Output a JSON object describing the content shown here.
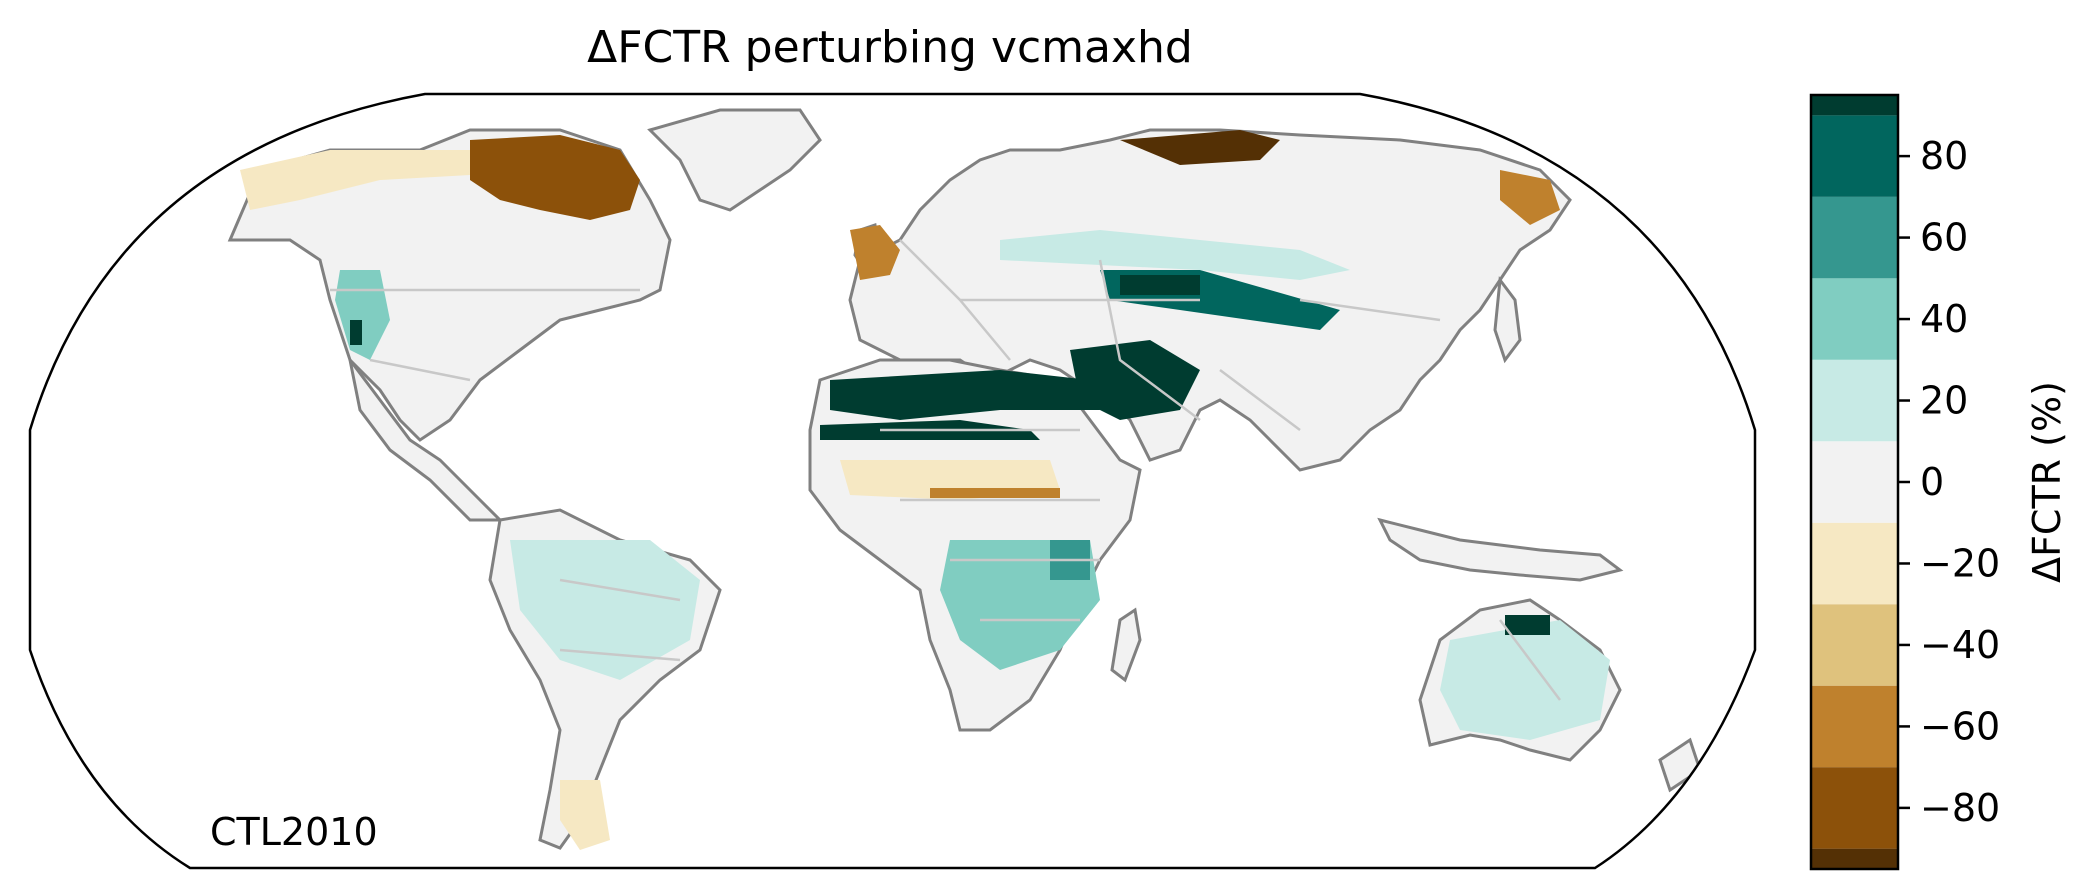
{
  "figure": {
    "title": "ΔFCTR perturbing vcmaxhd",
    "corner_label": "CTL2010"
  },
  "colorbar": {
    "label": "ΔFCTR (%)",
    "boundaries": [
      -90,
      -70,
      -50,
      -30,
      -10,
      10,
      30,
      50,
      70,
      90
    ],
    "colors": [
      "#543005",
      "#8c510a",
      "#bf812d",
      "#dfc27d",
      "#f6e8c3",
      "#f2f2f2",
      "#c7eae5",
      "#80cdc1",
      "#35978f",
      "#01665e",
      "#003c30"
    ],
    "ticks": [
      80,
      60,
      40,
      20,
      0,
      -20,
      -40,
      -60,
      -80
    ],
    "tick_labels": [
      "80",
      "60",
      "40",
      "20",
      "0",
      "−20",
      "−40",
      "−60",
      "−80"
    ]
  },
  "map": {
    "projection": "Robinson",
    "land_color": "#f2f2f2",
    "coastline_color": "#808080",
    "border_color": "#c8c8c8",
    "regions": [
      {
        "name": "north-canada-decrease",
        "value": -65
      },
      {
        "name": "siberia-decrease",
        "value": -65
      },
      {
        "name": "sahara-increase",
        "value": 85
      },
      {
        "name": "middle-east-increase",
        "value": 85
      },
      {
        "name": "central-asia-increase",
        "value": 70
      },
      {
        "name": "southern-africa-increase",
        "value": 30
      },
      {
        "name": "australia-increase",
        "value": 20
      },
      {
        "name": "amazon-increase",
        "value": 15
      },
      {
        "name": "western-us-increase",
        "value": 25
      },
      {
        "name": "scandinavia-decrease",
        "value": -45
      },
      {
        "name": "sahel-decrease",
        "value": -45
      }
    ]
  }
}
